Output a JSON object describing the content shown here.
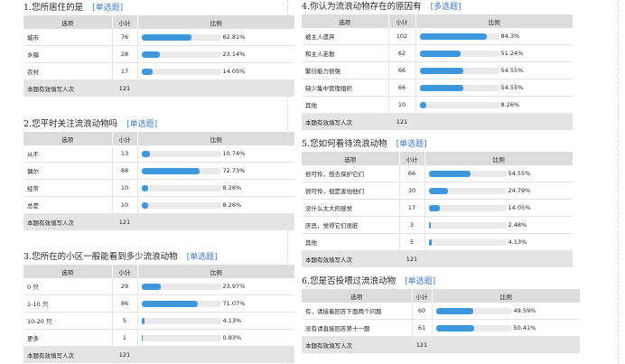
{
  "questions": [
    {
      "title": "1.您所居住的是",
      "type_tag": "[单选题]",
      "headers": [
        "选项",
        "小计",
        "比例"
      ],
      "rows": [
        {
          "option": "城市",
          "count": "76",
          "percent": "62.81%",
          "ratio": 0.6281
        },
        {
          "option": "乡镇",
          "count": "28",
          "percent": "23.14%",
          "ratio": 0.2314
        },
        {
          "option": "农村",
          "count": "17",
          "percent": "14.05%",
          "ratio": 0.1405
        }
      ],
      "total_label": "本题有效填写人次",
      "total_count": "121"
    },
    {
      "title": "2.您平时关注流浪动物吗",
      "type_tag": "[单选题]",
      "headers": [
        "选项",
        "小计",
        "比例"
      ],
      "rows": [
        {
          "option": "从不",
          "count": "13",
          "percent": "10.74%",
          "ratio": 0.1074
        },
        {
          "option": "偶尔",
          "count": "88",
          "percent": "72.73%",
          "ratio": 0.7273
        },
        {
          "option": "经常",
          "count": "10",
          "percent": "8.26%",
          "ratio": 0.0826
        },
        {
          "option": "总是",
          "count": "10",
          "percent": "8.26%",
          "ratio": 0.0826
        }
      ],
      "total_label": "本题有效填写人次",
      "total_count": "121"
    },
    {
      "title": "3.您所在的小区一般能看到多少流浪动物",
      "type_tag": "[单选题]",
      "headers": [
        "选项",
        "小计",
        "比例"
      ],
      "rows": [
        {
          "option": "0 只",
          "count": "29",
          "percent": "23.97%",
          "ratio": 0.2397
        },
        {
          "option": "1-10 只",
          "count": "86",
          "percent": "71.07%",
          "ratio": 0.7107
        },
        {
          "option": "10-20 只",
          "count": "5",
          "percent": "4.13%",
          "ratio": 0.0413
        },
        {
          "option": "更多",
          "count": "1",
          "percent": "0.83%",
          "ratio": 0.0083
        }
      ],
      "total_label": "本题有效填写人次",
      "total_count": "121"
    },
    {
      "title": "4.你认为流浪动物存在的原因有",
      "type_tag": "[多选题]",
      "headers": [
        "选项",
        "小计",
        "比例"
      ],
      "rows": [
        {
          "option": "被主人遗弃",
          "count": "102",
          "percent": "84.3%",
          "ratio": 0.843
        },
        {
          "option": "和主人走散",
          "count": "62",
          "percent": "51.24%",
          "ratio": 0.5124
        },
        {
          "option": "繁衍能力很强",
          "count": "66",
          "percent": "54.55%",
          "ratio": 0.5455
        },
        {
          "option": "缺少集中管理组织",
          "count": "66",
          "percent": "54.55%",
          "ratio": 0.5455
        },
        {
          "option": "其他",
          "count": "10",
          "percent": "8.26%",
          "ratio": 0.0826
        }
      ],
      "total_label": "本题有效填写人次",
      "total_count": "121"
    },
    {
      "title": "5.您如何看待流浪动物",
      "type_tag": "[单选题]",
      "headers": [
        "选项",
        "小计",
        "比例"
      ],
      "rows": [
        {
          "option": "很可怜，想去保护它们",
          "count": "66",
          "percent": "54.55%",
          "ratio": 0.5455
        },
        {
          "option": "很可怜，但是害怕他们",
          "count": "30",
          "percent": "24.79%",
          "ratio": 0.2479
        },
        {
          "option": "没什么太大的感觉",
          "count": "17",
          "percent": "14.05%",
          "ratio": 0.1405
        },
        {
          "option": "厌恶，觉得它们很脏",
          "count": "3",
          "percent": "2.48%",
          "ratio": 0.0248
        },
        {
          "option": "其他",
          "count": "5",
          "percent": "4.13%",
          "ratio": 0.0413
        }
      ],
      "total_label": "本题有效填写人次",
      "total_count": "121"
    },
    {
      "title": "6.您是否投喂过流浪动物",
      "type_tag": "[单选题]",
      "headers": [
        "选项",
        "小计",
        "比例"
      ],
      "rows": [
        {
          "option": "有，请接着回答下面两个问题",
          "count": "60",
          "percent": "49.59%",
          "ratio": 0.4959
        },
        {
          "option": "没有请直接回答第十一题",
          "count": "61",
          "percent": "50.41%",
          "ratio": 0.5041
        }
      ],
      "total_label": "本题有效填写人次",
      "total_count": "121"
    }
  ]
}
